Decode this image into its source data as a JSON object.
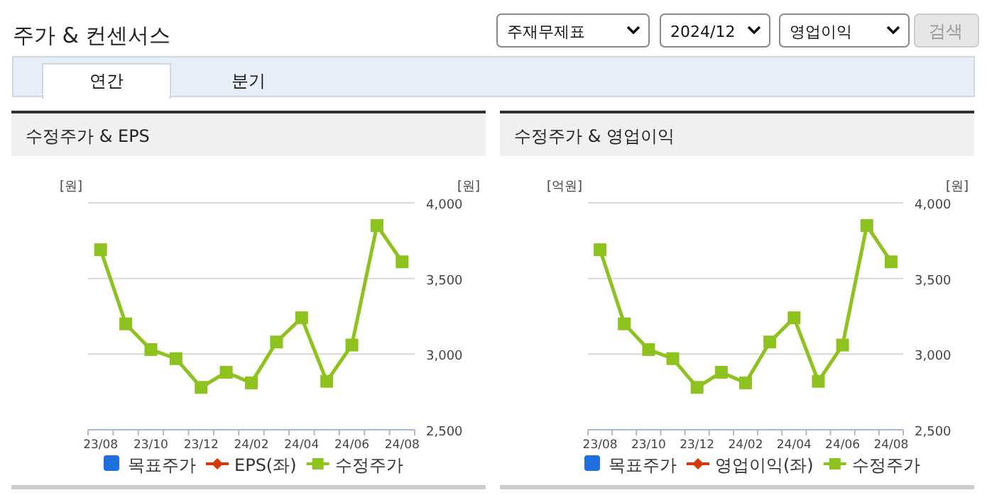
{
  "chart_data": [
    {
      "type": "other",
      "title": "주가 & 컨센서스",
      "annotations": [
        "주재무제표",
        "2024/12",
        "영업이익",
        "검색",
        "연간",
        "분기"
      ]
    },
    {
      "type": "line",
      "title": "수정주가 & EPS",
      "ylabel": "[원]",
      "y2label": "[원]",
      "categories": [
        "23/08",
        null,
        "23/10",
        null,
        "23/12",
        null,
        "24/02",
        null,
        "24/04",
        null,
        "24/06",
        null,
        "24/08"
      ],
      "y2lim": [
        2500,
        4000
      ],
      "y2ticks": [
        {
          "value": 2500,
          "label": "2,500"
        },
        {
          "value": 3000,
          "label": "3,000"
        },
        {
          "value": 3500,
          "label": "3,500"
        },
        {
          "value": 4000,
          "label": "4,000"
        }
      ],
      "grid": "y",
      "legend": "bottom",
      "series": [
        {
          "name": "목표주가",
          "type": "bar",
          "color": "#1f6fde",
          "values": [
            null,
            null,
            null,
            null,
            null,
            null,
            null,
            null,
            null,
            null,
            null,
            null,
            null
          ]
        },
        {
          "name": "EPS(좌)",
          "type": "line",
          "marker": "diamond",
          "color": "#d4380d",
          "values": [
            null,
            null,
            null,
            null,
            null,
            null,
            null,
            null,
            null,
            null,
            null,
            null,
            null
          ]
        },
        {
          "name": "수정주가",
          "type": "line",
          "marker": "square",
          "axis": "y2",
          "color": "#8dc21f",
          "values": [
            3690,
            3200,
            3030,
            2970,
            2780,
            2880,
            2810,
            3080,
            3240,
            2820,
            3060,
            3850,
            3610
          ]
        }
      ]
    },
    {
      "type": "line",
      "title": "수정주가 & 영업이익",
      "ylabel": "[억원]",
      "y2label": "[원]",
      "categories": [
        "23/08",
        null,
        "23/10",
        null,
        "23/12",
        null,
        "24/02",
        null,
        "24/04",
        null,
        "24/06",
        null,
        "24/08"
      ],
      "y2lim": [
        2500,
        4000
      ],
      "y2ticks": [
        {
          "value": 2500,
          "label": "2,500"
        },
        {
          "value": 3000,
          "label": "3,000"
        },
        {
          "value": 3500,
          "label": "3,500"
        },
        {
          "value": 4000,
          "label": "4,000"
        }
      ],
      "grid": "y",
      "legend": "bottom",
      "series": [
        {
          "name": "목표주가",
          "type": "bar",
          "color": "#1f6fde",
          "values": [
            null,
            null,
            null,
            null,
            null,
            null,
            null,
            null,
            null,
            null,
            null,
            null,
            null
          ]
        },
        {
          "name": "영업이익(좌)",
          "type": "line",
          "marker": "diamond",
          "color": "#d4380d",
          "values": [
            null,
            null,
            null,
            null,
            null,
            null,
            null,
            null,
            null,
            null,
            null,
            null,
            null
          ]
        },
        {
          "name": "수정주가",
          "type": "line",
          "marker": "square",
          "axis": "y2",
          "color": "#8dc21f",
          "values": [
            3690,
            3200,
            3030,
            2970,
            2780,
            2880,
            2810,
            3080,
            3240,
            2820,
            3060,
            3850,
            3610
          ]
        }
      ]
    }
  ]
}
